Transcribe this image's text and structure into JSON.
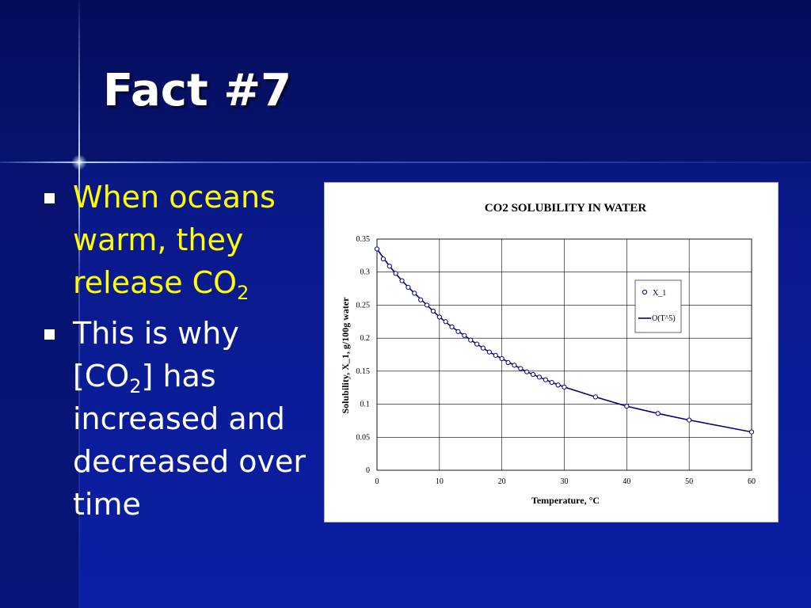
{
  "slide": {
    "title": "Fact #7",
    "bullets": [
      {
        "parts": [
          "When oceans warm, they release CO",
          "2",
          ""
        ]
      },
      {
        "parts": [
          "This is why [CO",
          "2",
          "] has increased and decreased over time"
        ]
      }
    ]
  },
  "colors": {
    "title": "#ffffff",
    "bullet1": "#ffff00",
    "bullet2": "#ffffff",
    "series": "#000080"
  },
  "chart_data": {
    "type": "scatter",
    "title": "CO2 SOLUBILITY IN WATER",
    "xlabel": "Temperature, °C",
    "ylabel": "Solubility, X_1, g/100g water",
    "xlim": [
      0,
      60
    ],
    "ylim": [
      0,
      0.35
    ],
    "xticks": [
      0,
      10,
      20,
      30,
      40,
      50,
      60
    ],
    "yticks": [
      0,
      0.05,
      0.1,
      0.15,
      0.2,
      0.25,
      0.3,
      0.35
    ],
    "grid": true,
    "legend_position": "right",
    "series": [
      {
        "name": "X_1",
        "style": "markers",
        "x": [
          0,
          1,
          2,
          3,
          4,
          5,
          6,
          7,
          8,
          9,
          10,
          11,
          12,
          13,
          14,
          15,
          16,
          17,
          18,
          19,
          20,
          21,
          22,
          23,
          24,
          25,
          26,
          27,
          28,
          29,
          30,
          35,
          40,
          45,
          50,
          60
        ],
        "y": [
          0.335,
          0.32,
          0.309,
          0.298,
          0.287,
          0.277,
          0.268,
          0.258,
          0.25,
          0.241,
          0.232,
          0.225,
          0.217,
          0.21,
          0.204,
          0.197,
          0.191,
          0.185,
          0.179,
          0.174,
          0.169,
          0.163,
          0.159,
          0.154,
          0.149,
          0.145,
          0.141,
          0.137,
          0.133,
          0.129,
          0.126,
          0.111,
          0.097,
          0.086,
          0.076,
          0.058
        ]
      },
      {
        "name": "O(T^5)",
        "style": "line",
        "x": [
          0,
          2,
          4,
          6,
          8,
          10,
          12,
          14,
          16,
          18,
          20,
          22,
          24,
          26,
          28,
          30,
          35,
          40,
          45,
          50,
          55,
          60
        ],
        "y": [
          0.335,
          0.309,
          0.287,
          0.268,
          0.25,
          0.232,
          0.217,
          0.204,
          0.191,
          0.179,
          0.169,
          0.159,
          0.149,
          0.141,
          0.133,
          0.126,
          0.111,
          0.097,
          0.086,
          0.076,
          0.067,
          0.058
        ]
      }
    ]
  }
}
